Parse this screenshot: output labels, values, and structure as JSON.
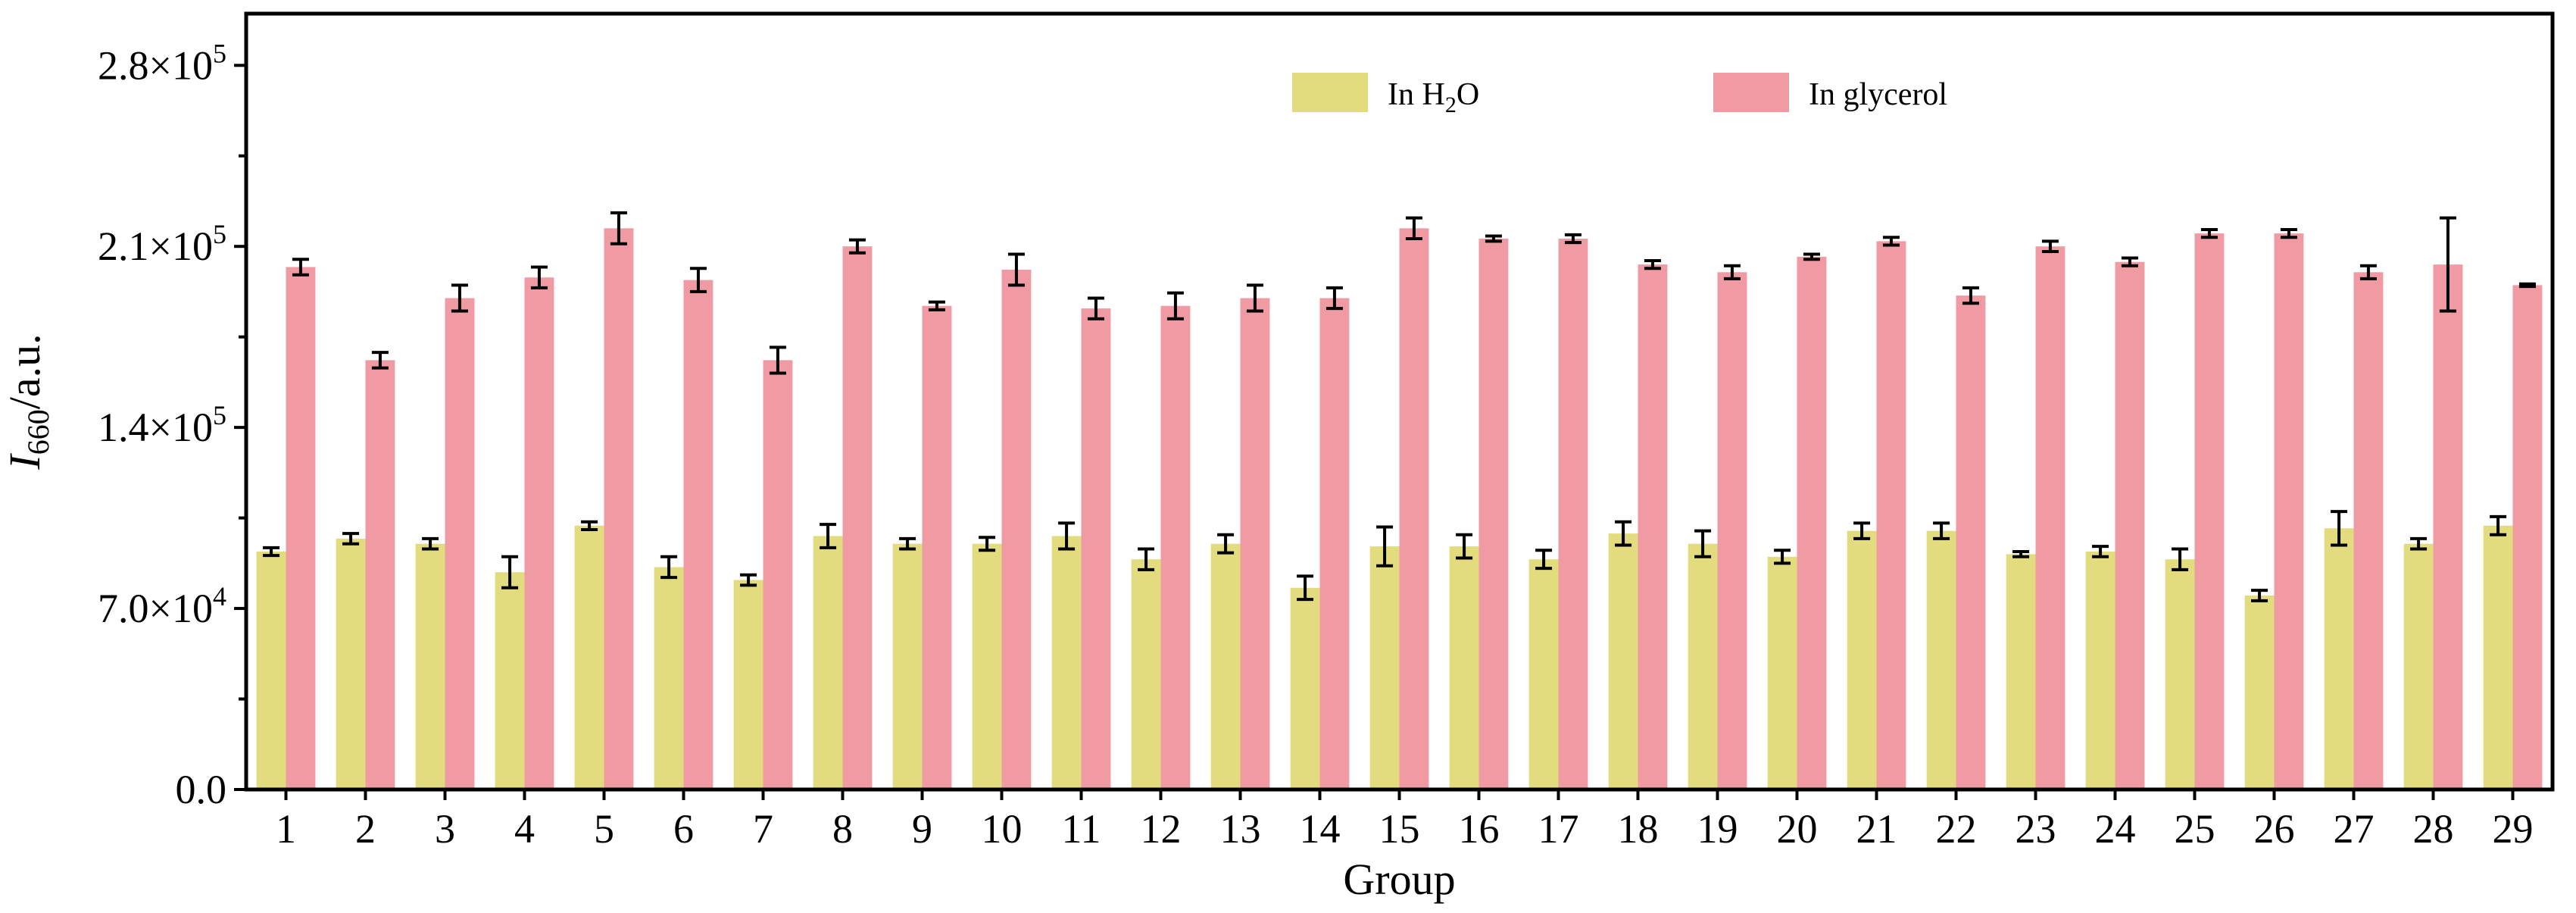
{
  "chart_data": {
    "type": "bar",
    "xlabel": "Group",
    "ylabel": "I660/a.u.",
    "ylabel_parts": {
      "main": "I",
      "sub": "660",
      "rest": "/a.u."
    },
    "ylim": [
      0,
      300000
    ],
    "yticks": [
      {
        "value": 0,
        "label": "0.0",
        "exp": ""
      },
      {
        "value": 70000,
        "label": "7.0×10",
        "exp": "4"
      },
      {
        "value": 140000,
        "label": "1.4×10",
        "exp": "5"
      },
      {
        "value": 210000,
        "label": "2.1×10",
        "exp": "5"
      },
      {
        "value": 280000,
        "label": "2.8×10",
        "exp": "5"
      }
    ],
    "categories": [
      "1",
      "2",
      "3",
      "4",
      "5",
      "6",
      "7",
      "8",
      "9",
      "10",
      "11",
      "12",
      "13",
      "14",
      "15",
      "16",
      "17",
      "18",
      "19",
      "20",
      "21",
      "22",
      "23",
      "24",
      "25",
      "26",
      "27",
      "28",
      "29"
    ],
    "series": [
      {
        "name": "In H2O",
        "legend": {
          "pre": "In H",
          "sub": "2",
          "post": "O"
        },
        "color": "#e3dc7e",
        "values": [
          92000,
          97000,
          95000,
          84000,
          102000,
          86000,
          81000,
          98000,
          95000,
          95000,
          98000,
          89000,
          95000,
          78000,
          94000,
          94000,
          89000,
          99000,
          95000,
          90000,
          100000,
          100000,
          91000,
          92000,
          89000,
          75000,
          101000,
          95000,
          102000
        ],
        "errors": [
          1500,
          2000,
          2000,
          6000,
          1500,
          4000,
          2000,
          4500,
          2000,
          2500,
          5000,
          4000,
          3500,
          4500,
          7500,
          4500,
          3500,
          4500,
          5000,
          2500,
          3000,
          3000,
          1000,
          2000,
          4000,
          2000,
          6500,
          2000,
          3500
        ]
      },
      {
        "name": "In glycerol",
        "color": "#f09aa4",
        "values": [
          202000,
          166000,
          190000,
          198000,
          217000,
          197000,
          166000,
          210000,
          187000,
          201000,
          186000,
          187000,
          190000,
          190000,
          217000,
          213000,
          213000,
          203000,
          200000,
          206000,
          212000,
          191000,
          210000,
          204000,
          215000,
          215000,
          200000,
          203000,
          195000
        ],
        "errors": [
          3000,
          3000,
          5000,
          4000,
          6000,
          4500,
          5000,
          2500,
          1500,
          6000,
          4000,
          5000,
          5000,
          4000,
          4000,
          1000,
          1500,
          1500,
          2500,
          1000,
          1500,
          3000,
          2000,
          1500,
          1500,
          1500,
          2500,
          18000,
          500
        ]
      }
    ],
    "legend_placement": "top-center"
  }
}
